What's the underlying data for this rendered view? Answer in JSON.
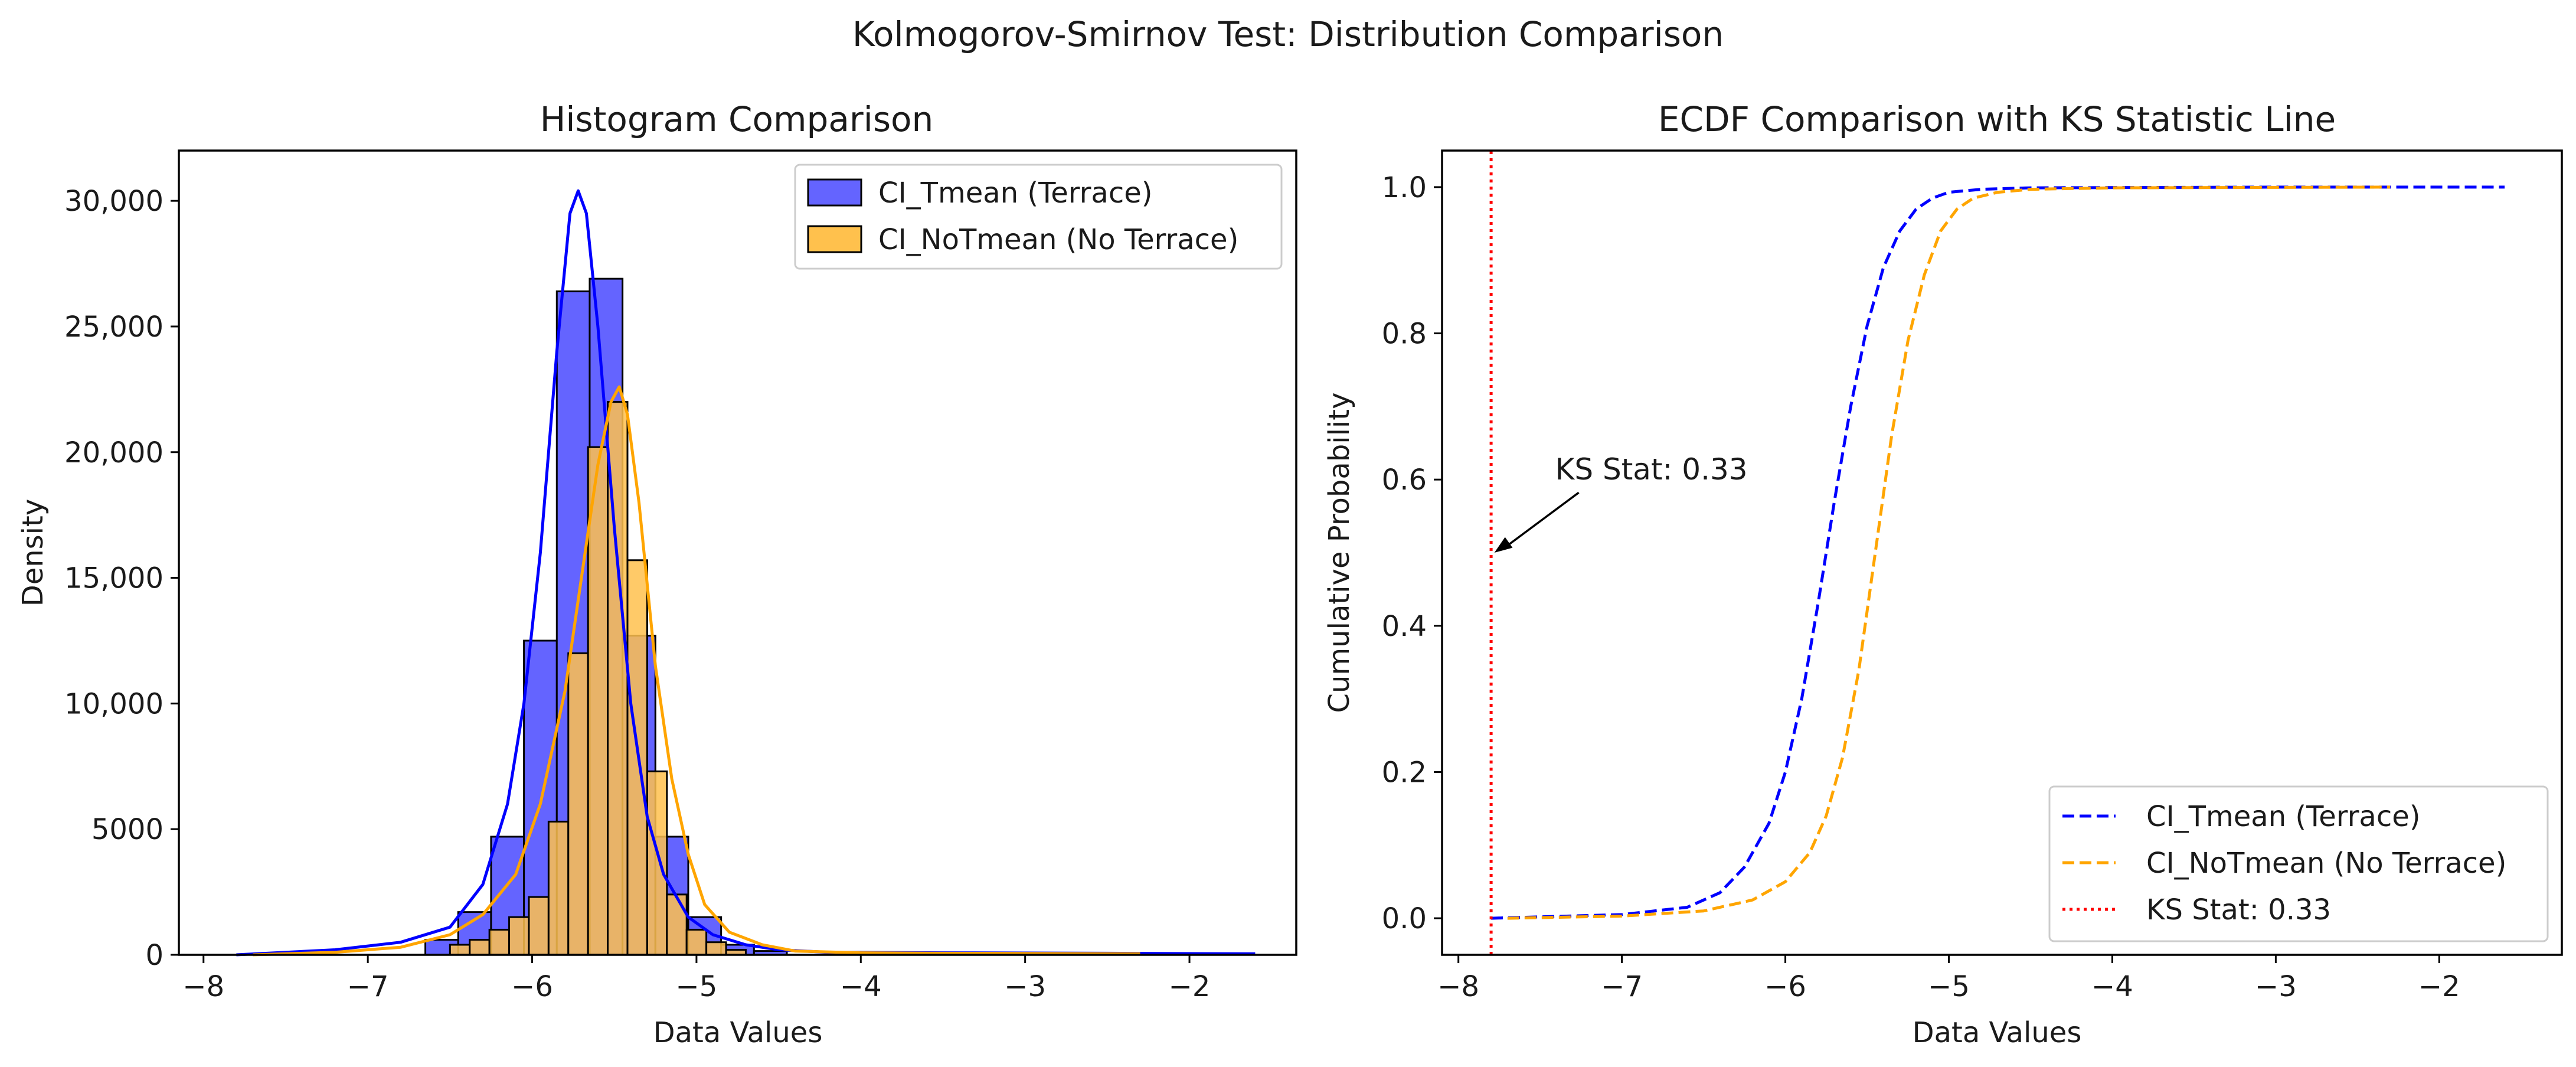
{
  "suptitle": "Kolmogorov-Smirnov Test: Distribution Comparison",
  "chart_data": [
    {
      "type": "bar",
      "title": "Histogram Comparison",
      "xlabel": "Data Values",
      "ylabel": "Density",
      "xlim": [
        -8.15,
        -1.35
      ],
      "ylim": [
        0,
        32000
      ],
      "xticks": [
        -8,
        -7,
        -6,
        -5,
        -4,
        -3,
        -2
      ],
      "xtick_labels": [
        "−8",
        "−7",
        "−6",
        "−5",
        "−4",
        "−3",
        "−2"
      ],
      "yticks": [
        0,
        5000,
        10000,
        15000,
        20000,
        25000,
        30000
      ],
      "ytick_labels": [
        "0",
        "5000",
        "10,000",
        "15,000",
        "20,000",
        "25,000",
        "30,000"
      ],
      "legend_position": "top-right",
      "series": [
        {
          "name": "CI_Tmean (Terrace)",
          "color": "#0000ff",
          "bar_color": "#6464ff",
          "bins": [
            [
              -6.65,
              -6.45,
              600
            ],
            [
              -6.45,
              -6.25,
              1700
            ],
            [
              -6.25,
              -6.05,
              4700
            ],
            [
              -6.05,
              -5.85,
              12500
            ],
            [
              -5.85,
              -5.65,
              26400
            ],
            [
              -5.65,
              -5.45,
              26900
            ],
            [
              -5.45,
              -5.25,
              12700
            ],
            [
              -5.25,
              -5.05,
              4700
            ],
            [
              -5.05,
              -4.85,
              1500
            ],
            [
              -4.85,
              -4.65,
              400
            ],
            [
              -4.65,
              -4.45,
              150
            ]
          ],
          "kde": {
            "x": [
              -7.8,
              -7.2,
              -6.8,
              -6.5,
              -6.3,
              -6.15,
              -6.05,
              -5.95,
              -5.85,
              -5.77,
              -5.72,
              -5.67,
              -5.6,
              -5.5,
              -5.4,
              -5.3,
              -5.2,
              -5.05,
              -4.9,
              -4.7,
              -4.5,
              -4.2,
              -3.5,
              -2.5,
              -1.6
            ],
            "y": [
              0,
              200,
              500,
              1100,
              2800,
              6000,
              10000,
              16000,
              24000,
              29500,
              30400,
              29500,
              25000,
              17000,
              10000,
              5500,
              3200,
              1500,
              800,
              400,
              200,
              100,
              80,
              60,
              40
            ]
          }
        },
        {
          "name": "CI_NoTmean (No Terrace)",
          "color": "#ffa500",
          "bar_color": "#ffc14d",
          "bins": [
            [
              -6.5,
              -6.38,
              400
            ],
            [
              -6.38,
              -6.26,
              600
            ],
            [
              -6.26,
              -6.14,
              1000
            ],
            [
              -6.14,
              -6.02,
              1500
            ],
            [
              -6.02,
              -5.9,
              2300
            ],
            [
              -5.9,
              -5.78,
              5300
            ],
            [
              -5.78,
              -5.66,
              12000
            ],
            [
              -5.66,
              -5.54,
              20200
            ],
            [
              -5.54,
              -5.42,
              22000
            ],
            [
              -5.42,
              -5.3,
              15700
            ],
            [
              -5.3,
              -5.18,
              7300
            ],
            [
              -5.18,
              -5.06,
              2400
            ],
            [
              -5.06,
              -4.94,
              1000
            ],
            [
              -4.94,
              -4.82,
              500
            ],
            [
              -4.82,
              -4.7,
              200
            ]
          ],
          "kde": {
            "x": [
              -7.7,
              -7.2,
              -6.8,
              -6.5,
              -6.3,
              -6.1,
              -5.95,
              -5.8,
              -5.7,
              -5.6,
              -5.52,
              -5.47,
              -5.42,
              -5.35,
              -5.25,
              -5.15,
              -5.05,
              -4.95,
              -4.8,
              -4.6,
              -4.4,
              -4.0,
              -3.5,
              -2.3
            ],
            "y": [
              0,
              100,
              300,
              800,
              1600,
              3200,
              6000,
              10500,
              15000,
              19500,
              22000,
              22600,
              21500,
              18000,
              11500,
              7000,
              4000,
              2000,
              900,
              400,
              150,
              80,
              60,
              40
            ]
          }
        }
      ]
    },
    {
      "type": "line",
      "title": "ECDF Comparison with KS Statistic Line",
      "xlabel": "Data Values",
      "ylabel": "Cumulative Probability",
      "xlim": [
        -8.1,
        -1.25
      ],
      "ylim": [
        -0.05,
        1.05
      ],
      "xticks": [
        -8,
        -7,
        -6,
        -5,
        -4,
        -3,
        -2
      ],
      "xtick_labels": [
        "−8",
        "−7",
        "−6",
        "−5",
        "−4",
        "−3",
        "−2"
      ],
      "yticks": [
        0.0,
        0.2,
        0.4,
        0.6,
        0.8,
        1.0
      ],
      "ytick_labels": [
        "0.0",
        "0.2",
        "0.4",
        "0.6",
        "0.8",
        "1.0"
      ],
      "legend_position": "bottom-right",
      "series": [
        {
          "name": "CI_Tmean (Terrace)",
          "color": "#0000ff",
          "x": [
            -7.8,
            -7.0,
            -6.6,
            -6.4,
            -6.25,
            -6.1,
            -6.0,
            -5.9,
            -5.8,
            -5.7,
            -5.6,
            -5.5,
            -5.4,
            -5.3,
            -5.2,
            -5.1,
            -5.0,
            -4.8,
            -4.5,
            -3.0,
            -1.6
          ],
          "y": [
            0.0,
            0.005,
            0.015,
            0.035,
            0.07,
            0.13,
            0.2,
            0.3,
            0.43,
            0.57,
            0.7,
            0.81,
            0.89,
            0.94,
            0.97,
            0.985,
            0.993,
            0.997,
            0.999,
            1.0,
            1.0
          ]
        },
        {
          "name": "CI_NoTmean (No Terrace)",
          "color": "#ffa500",
          "x": [
            -7.7,
            -7.0,
            -6.5,
            -6.2,
            -6.0,
            -5.85,
            -5.75,
            -5.65,
            -5.55,
            -5.45,
            -5.35,
            -5.25,
            -5.15,
            -5.05,
            -4.95,
            -4.85,
            -4.7,
            -4.5,
            -4.0,
            -2.3
          ],
          "y": [
            0.0,
            0.003,
            0.01,
            0.025,
            0.05,
            0.09,
            0.14,
            0.22,
            0.34,
            0.5,
            0.66,
            0.79,
            0.88,
            0.94,
            0.97,
            0.985,
            0.993,
            0.997,
            0.999,
            1.0
          ]
        },
        {
          "name": "KS Stat: 0.33",
          "color": "#ff0000",
          "style": "dotted",
          "x": [
            -7.8,
            -7.8
          ],
          "y": [
            -0.05,
            1.05
          ]
        }
      ],
      "annotation": {
        "text": "KS Stat: 0.33",
        "text_xy": [
          -7.3,
          0.6
        ],
        "arrow_xy": [
          -7.78,
          0.5
        ]
      }
    }
  ]
}
